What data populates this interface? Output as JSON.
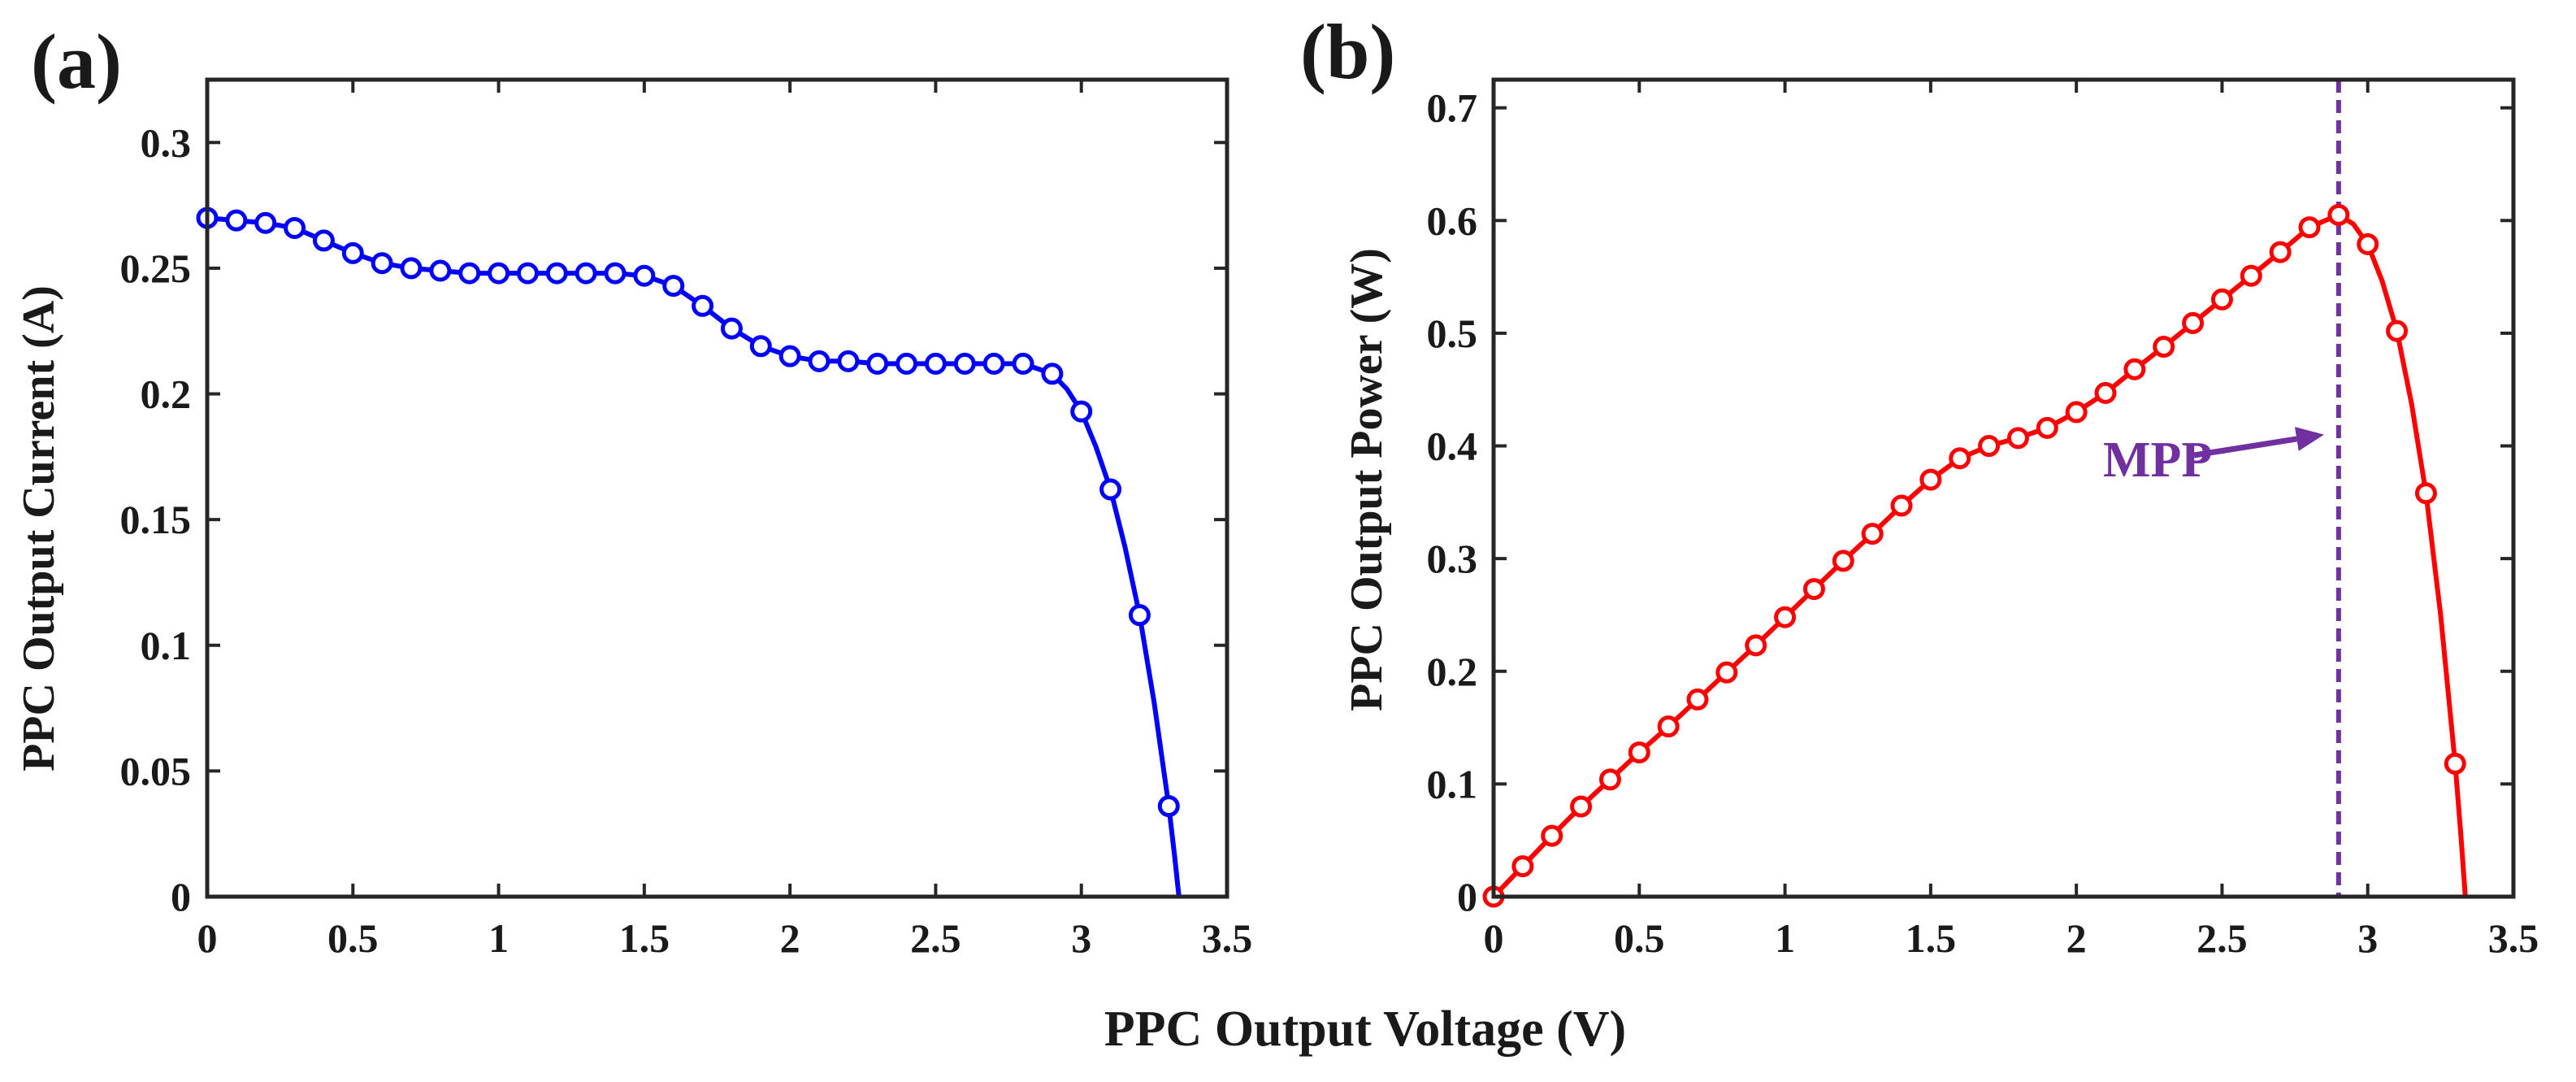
{
  "figure": {
    "xlabel": "PPC Output Voltage (V)"
  },
  "chart_data": [
    {
      "type": "line",
      "panel_label": "(a)",
      "ylabel": "PPC Output Current (A)",
      "xlim": [
        0,
        3.5
      ],
      "ylim": [
        0,
        0.325
      ],
      "xticks": [
        0,
        0.5,
        1,
        1.5,
        2,
        2.5,
        3,
        3.5
      ],
      "xtick_labels": [
        "0",
        "0.5",
        "1",
        "1.5",
        "2",
        "2.5",
        "3",
        "3.5"
      ],
      "yticks": [
        0,
        0.05,
        0.1,
        0.15,
        0.2,
        0.25,
        0.3
      ],
      "ytick_labels": [
        "0",
        "0.05",
        "0.1",
        "0.15",
        "0.2",
        "0.25",
        "0.3"
      ],
      "grid": false,
      "series": [
        {
          "color": "#0000ff",
          "marker": "circle-open",
          "markers": {
            "x": [
              0,
              0.1,
              0.2,
              0.3,
              0.4,
              0.5,
              0.6,
              0.7,
              0.8,
              0.9,
              1.0,
              1.1,
              1.2,
              1.3,
              1.4,
              1.5,
              1.6,
              1.7,
              1.8,
              1.9,
              2.0,
              2.1,
              2.2,
              2.3,
              2.4,
              2.5,
              2.6,
              2.7,
              2.8,
              2.9,
              3.0,
              3.1,
              3.2,
              3.3
            ],
            "y": [
              0.27,
              0.269,
              0.268,
              0.266,
              0.261,
              0.256,
              0.252,
              0.25,
              0.249,
              0.248,
              0.248,
              0.248,
              0.248,
              0.248,
              0.248,
              0.247,
              0.243,
              0.235,
              0.226,
              0.219,
              0.215,
              0.213,
              0.213,
              0.212,
              0.212,
              0.212,
              0.212,
              0.212,
              0.212,
              0.208,
              0.193,
              0.162,
              0.112,
              0.036
            ]
          },
          "curve": {
            "x": [
              0,
              0.1,
              0.2,
              0.3,
              0.4,
              0.5,
              0.6,
              0.7,
              0.8,
              0.9,
              1.0,
              1.1,
              1.2,
              1.3,
              1.4,
              1.5,
              1.6,
              1.7,
              1.8,
              1.9,
              2.0,
              2.1,
              2.2,
              2.3,
              2.4,
              2.5,
              2.6,
              2.7,
              2.8,
              2.9,
              2.95,
              3.0,
              3.05,
              3.1,
              3.15,
              3.2,
              3.25,
              3.3,
              3.32,
              3.335
            ],
            "y": [
              0.27,
              0.269,
              0.268,
              0.266,
              0.261,
              0.256,
              0.252,
              0.25,
              0.249,
              0.248,
              0.248,
              0.248,
              0.248,
              0.248,
              0.248,
              0.247,
              0.243,
              0.235,
              0.226,
              0.219,
              0.215,
              0.213,
              0.213,
              0.212,
              0.212,
              0.212,
              0.212,
              0.212,
              0.212,
              0.208,
              0.202,
              0.193,
              0.179,
              0.162,
              0.139,
              0.112,
              0.077,
              0.036,
              0.016,
              0.0
            ]
          }
        }
      ]
    },
    {
      "type": "line",
      "panel_label": "(b)",
      "ylabel": "PPC Output Power (W)",
      "xlim": [
        0,
        3.5
      ],
      "ylim": [
        0,
        0.725
      ],
      "xticks": [
        0,
        0.5,
        1,
        1.5,
        2,
        2.5,
        3,
        3.5
      ],
      "xtick_labels": [
        "0",
        "0.5",
        "1",
        "1.5",
        "2",
        "2.5",
        "3",
        "3.5"
      ],
      "yticks": [
        0,
        0.1,
        0.2,
        0.3,
        0.4,
        0.5,
        0.6,
        0.7
      ],
      "ytick_labels": [
        "0",
        "0.1",
        "0.2",
        "0.3",
        "0.4",
        "0.5",
        "0.6",
        "0.7"
      ],
      "grid": false,
      "series": [
        {
          "color": "#ff0000",
          "marker": "circle-open",
          "markers": {
            "x": [
              0,
              0.1,
              0.2,
              0.3,
              0.4,
              0.5,
              0.6,
              0.7,
              0.8,
              0.9,
              1.0,
              1.1,
              1.2,
              1.3,
              1.4,
              1.5,
              1.6,
              1.7,
              1.8,
              1.9,
              2.0,
              2.1,
              2.2,
              2.3,
              2.4,
              2.5,
              2.6,
              2.7,
              2.8,
              2.9,
              3.0,
              3.1,
              3.2,
              3.3
            ],
            "y": [
              0.0,
              0.027,
              0.054,
              0.08,
              0.104,
              0.128,
              0.151,
              0.175,
              0.199,
              0.223,
              0.248,
              0.273,
              0.298,
              0.322,
              0.347,
              0.37,
              0.389,
              0.4,
              0.407,
              0.416,
              0.43,
              0.447,
              0.468,
              0.488,
              0.509,
              0.53,
              0.551,
              0.572,
              0.594,
              0.605,
              0.579,
              0.502,
              0.358,
              0.118
            ]
          },
          "curve": {
            "x": [
              0,
              0.1,
              0.2,
              0.3,
              0.4,
              0.5,
              0.6,
              0.7,
              0.8,
              0.9,
              1.0,
              1.1,
              1.2,
              1.3,
              1.4,
              1.5,
              1.6,
              1.7,
              1.8,
              1.9,
              2.0,
              2.1,
              2.2,
              2.3,
              2.4,
              2.5,
              2.6,
              2.7,
              2.8,
              2.9,
              2.95,
              3.0,
              3.05,
              3.1,
              3.15,
              3.2,
              3.25,
              3.3,
              3.32,
              3.335
            ],
            "y": [
              0.0,
              0.027,
              0.054,
              0.08,
              0.104,
              0.128,
              0.151,
              0.175,
              0.199,
              0.223,
              0.248,
              0.273,
              0.298,
              0.322,
              0.347,
              0.37,
              0.389,
              0.4,
              0.407,
              0.416,
              0.43,
              0.447,
              0.468,
              0.488,
              0.509,
              0.53,
              0.551,
              0.572,
              0.594,
              0.605,
              0.597,
              0.579,
              0.546,
              0.502,
              0.438,
              0.358,
              0.25,
              0.118,
              0.053,
              0.0
            ]
          }
        }
      ],
      "annotations": [
        {
          "text": "MPP",
          "color": "#7030a0",
          "vline_x": 2.9,
          "arrow_to": [
            2.85,
            0.41
          ]
        }
      ]
    }
  ]
}
